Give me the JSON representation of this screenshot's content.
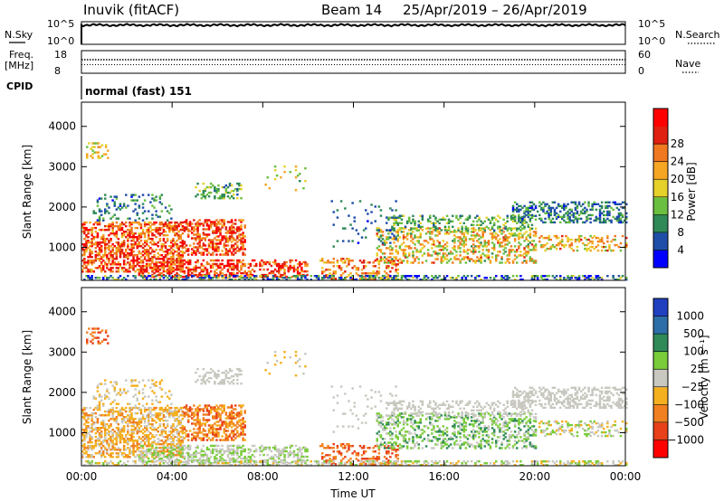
{
  "header": {
    "station": "Inuvik (fitACF)",
    "beam": "Beam 14",
    "dates": "25/Apr/2019 – 26/Apr/2019"
  },
  "chart_data": [
    {
      "type": "line",
      "panel": "noise",
      "left_label": "N.Sky",
      "right_label": "N.Search",
      "left_ticks": [
        "10^5",
        "10^0"
      ],
      "right_ticks": [
        "10^5",
        "10^0"
      ],
      "left_series_level": 0.85,
      "right_series_level": 0.85
    },
    {
      "type": "line",
      "panel": "frequency",
      "left_label": [
        "Freq.",
        "[MHz]"
      ],
      "right_label": "Nave",
      "left_ticks": [
        "18",
        "8"
      ],
      "right_ticks": [
        "60",
        "0"
      ],
      "freq_level": 0.5,
      "nave_level": 0.6
    },
    {
      "type": "table",
      "panel": "cpid",
      "label": "CPID",
      "value": "normal (fast) 151"
    },
    {
      "type": "heatmap",
      "panel": "power",
      "ylabel": "Slant Range [km]",
      "yticks": [
        "1000",
        "2000",
        "3000",
        "4000"
      ],
      "ylim": [
        180,
        4600
      ],
      "colorbar_label": "Power [dB]",
      "colorbar_ticks": [
        "4",
        "8",
        "12",
        "16",
        "20",
        "24",
        "28"
      ],
      "colorbar_colors": [
        "#0000ff",
        "#1f4ea8",
        "#2f8a57",
        "#6bbf40",
        "#e6d02a",
        "#f5a623",
        "#f07820",
        "#e02010",
        "#ff0000"
      ]
    },
    {
      "type": "heatmap",
      "panel": "velocity",
      "ylabel": "Slant Range [km]",
      "yticks": [
        "1000",
        "2000",
        "3000",
        "4000"
      ],
      "ylim": [
        180,
        4600
      ],
      "colorbar_label": "Velocity [m s⁻¹]",
      "colorbar_ticks": [
        "1000",
        "500",
        "100",
        "25",
        "−25",
        "−100",
        "−500",
        "−1000"
      ],
      "colorbar_colors": [
        "#2040c0",
        "#2e6ea8",
        "#2f8a57",
        "#7acc3a",
        "#c8c8c0",
        "#f5b020",
        "#f08020",
        "#e84018",
        "#ff0000"
      ],
      "xlabel": "Time UT",
      "xticks": [
        "00:00",
        "04:00",
        "08:00",
        "12:00",
        "16:00",
        "20:00",
        "00:00"
      ]
    }
  ]
}
